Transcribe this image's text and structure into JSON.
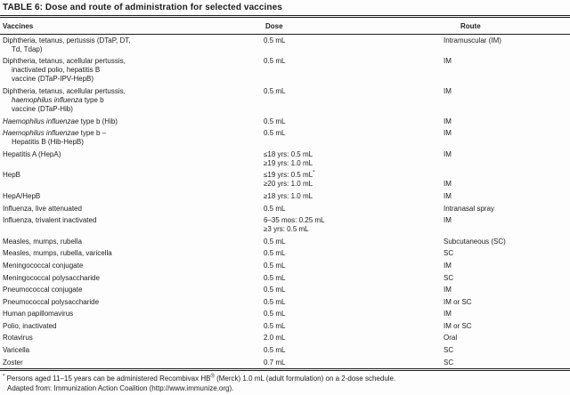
{
  "table": {
    "title": "TABLE 6: Dose and route of administration for selected vaccines",
    "columns": [
      "Vaccines",
      "Dose",
      "Route"
    ],
    "rows": [
      {
        "vaccine": [
          [
            {
              "t": "Diphtheria, tetanus, pertussis (DTaP, DT,"
            }
          ],
          [
            {
              "t": "Td, Tdap)"
            }
          ]
        ],
        "dose": [
          "0.5 mL"
        ],
        "route": "Intramuscular (IM)",
        "route_line": 0
      },
      {
        "vaccine": [
          [
            {
              "t": "Diphtheria, tetanus, acellular pertussis,"
            }
          ],
          [
            {
              "t": "inactivated polio, hepatitis B"
            }
          ],
          [
            {
              "t": "vaccine (DTaP-IPV-HepB)"
            }
          ]
        ],
        "dose": [
          "0.5 mL"
        ],
        "route": "IM",
        "route_line": 0
      },
      {
        "vaccine": [
          [
            {
              "t": "Diphtheria, tetanus, acellular pertussis,"
            }
          ],
          [
            {
              "t": "haemophilus influenza",
              "i": true
            },
            {
              "t": " type b"
            }
          ],
          [
            {
              "t": "vaccine (DTaP-Hib)"
            }
          ]
        ],
        "dose": [
          "0.5 mL"
        ],
        "route": "IM",
        "route_line": 0
      },
      {
        "vaccine": [
          [
            {
              "t": "Haemophilus influenzae",
              "i": true
            },
            {
              "t": " type b (Hib)"
            }
          ]
        ],
        "dose": [
          "0.5 mL"
        ],
        "route": "IM",
        "route_line": 0
      },
      {
        "vaccine": [
          [
            {
              "t": "Haemophilus influenzae",
              "i": true
            },
            {
              "t": " type b –"
            }
          ],
          [
            {
              "t": "Hepatitis B (Hib-HepB)"
            }
          ]
        ],
        "dose": [
          "0.5 mL"
        ],
        "route": "IM",
        "route_line": 0
      },
      {
        "vaccine": [
          [
            {
              "t": "Hepatitis A (HepA)"
            }
          ]
        ],
        "dose": [
          "≤18 yrs: 0.5 mL",
          "≥19 yrs: 1.0 mL"
        ],
        "route": "IM",
        "route_line": 0
      },
      {
        "vaccine": [
          [
            {
              "t": "HepB"
            }
          ]
        ],
        "dose": [
          "≤19 yrs: 0.5 mL*",
          "≥20 yrs: 1.0 mL"
        ],
        "route": "IM",
        "route_line": 1
      },
      {
        "vaccine": [
          [
            {
              "t": "HepA/HepB"
            }
          ]
        ],
        "dose": [
          "≥18 yrs: 1.0 mL"
        ],
        "route": "IM",
        "route_line": 0
      },
      {
        "vaccine": [
          [
            {
              "t": "Influenza, live attenuated"
            }
          ]
        ],
        "dose": [
          "0.5 mL"
        ],
        "route": "Intranasal spray",
        "route_line": 0
      },
      {
        "vaccine": [
          [
            {
              "t": "Influenza, trivalent inactivated"
            }
          ]
        ],
        "dose": [
          "6–35 mos: 0.25 mL",
          "≥3 yrs: 0.5 mL"
        ],
        "route": "IM",
        "route_line": 0
      },
      {
        "vaccine": [
          [
            {
              "t": "Measles, mumps, rubella"
            }
          ]
        ],
        "dose": [
          "0.5 mL"
        ],
        "route": "Subcutaneous (SC)",
        "route_line": 0
      },
      {
        "vaccine": [
          [
            {
              "t": "Measles, mumps, rubella, varicella"
            }
          ]
        ],
        "dose": [
          "0.5 mL"
        ],
        "route": "SC",
        "route_line": 0
      },
      {
        "vaccine": [
          [
            {
              "t": "Meningococcal conjugate"
            }
          ]
        ],
        "dose": [
          "0.5 mL"
        ],
        "route": "IM",
        "route_line": 0
      },
      {
        "vaccine": [
          [
            {
              "t": "Meningococcal polysaccharide"
            }
          ]
        ],
        "dose": [
          "0.5 mL"
        ],
        "route": "SC",
        "route_line": 0
      },
      {
        "vaccine": [
          [
            {
              "t": "Pneumococcal conjugate"
            }
          ]
        ],
        "dose": [
          "0.5 mL"
        ],
        "route": "IM",
        "route_line": 0
      },
      {
        "vaccine": [
          [
            {
              "t": "Pneumococcal polysaccharide"
            }
          ]
        ],
        "dose": [
          "0.5 mL"
        ],
        "route": "IM or SC",
        "route_line": 0
      },
      {
        "vaccine": [
          [
            {
              "t": "Human papillomavirus"
            }
          ]
        ],
        "dose": [
          "0.5 mL"
        ],
        "route": "IM",
        "route_line": 0
      },
      {
        "vaccine": [
          [
            {
              "t": "Polio, inactivated"
            }
          ]
        ],
        "dose": [
          "0.5 mL"
        ],
        "route": "IM or SC",
        "route_line": 0
      },
      {
        "vaccine": [
          [
            {
              "t": "Rotavirus"
            }
          ]
        ],
        "dose": [
          "2.0 mL"
        ],
        "route": "Oral",
        "route_line": 0
      },
      {
        "vaccine": [
          [
            {
              "t": "Varicella"
            }
          ]
        ],
        "dose": [
          "0.5 mL"
        ],
        "route": "SC",
        "route_line": 0
      },
      {
        "vaccine": [
          [
            {
              "t": "Zoster"
            }
          ]
        ],
        "dose": [
          "0.7 mL"
        ],
        "route": "SC",
        "route_line": 0
      }
    ]
  },
  "footnotes": {
    "note1_segments": [
      {
        "t": "*",
        "sup": true
      },
      {
        "t": " Persons aged 11–15 years can be administered Recombivax HB"
      },
      {
        "t": "®",
        "sup": true
      },
      {
        "t": " (Merck) 1.0 mL (adult formulation) on a 2-dose schedule."
      }
    ],
    "note2": "Adapted from: Immunization Action Coalition (http://www.immunize.org)."
  }
}
